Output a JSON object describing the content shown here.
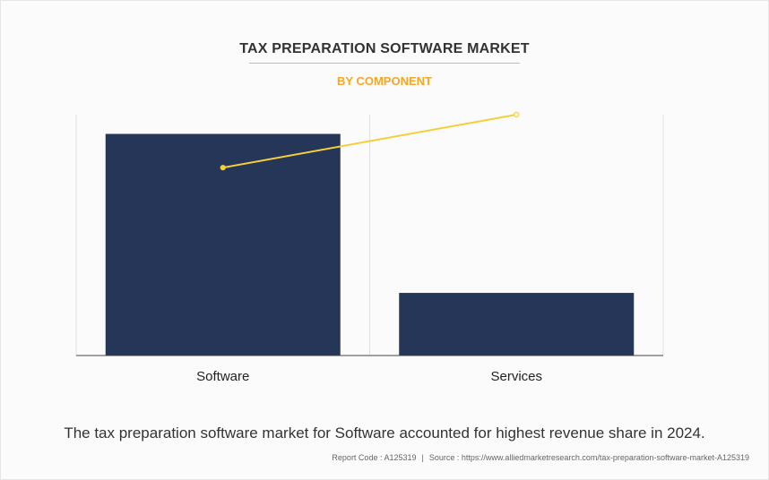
{
  "title": "TAX PREPARATION SOFTWARE MARKET",
  "subtitle": "BY COMPONENT",
  "caption": "The tax preparation software market for Software accounted for highest revenue share in 2024.",
  "footer": {
    "report_code": "Report Code : A125319",
    "separator": "|",
    "source": "Source : https://www.alliedmarketresearch.com/tax-preparation-software-market-A125319"
  },
  "colors": {
    "bar": "#253659",
    "line": "#f5cf3a",
    "subtitle": "#f5a623",
    "grid": "#e0e0e0",
    "axis": "#444444"
  },
  "chart_data": {
    "type": "bar",
    "categories": [
      "Software",
      "Services"
    ],
    "series": [
      {
        "type": "bar",
        "values": [
          92,
          26
        ]
      },
      {
        "type": "line",
        "values": [
          78,
          100
        ]
      }
    ],
    "ylim": [
      0,
      100
    ],
    "grid": "vertical",
    "legend": "none"
  }
}
